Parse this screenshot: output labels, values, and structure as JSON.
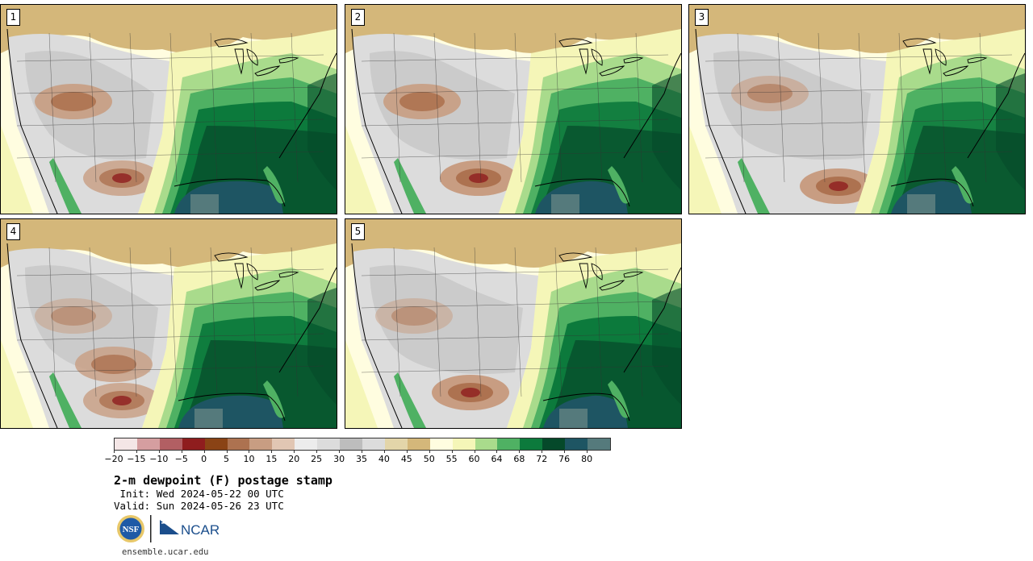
{
  "title": "2-m dewpoint (F) postage stamp",
  "init_label": " Init:",
  "init_value": "Wed 2024-05-22 00 UTC",
  "valid_label": "Valid:",
  "valid_value": "Sun 2024-05-26 23 UTC",
  "website": "ensemble.ucar.edu",
  "logos": {
    "nsf_text": "NSF",
    "ncar_text": "NCAR"
  },
  "panels": [
    {
      "number": "1"
    },
    {
      "number": "2"
    },
    {
      "number": "3"
    },
    {
      "number": "4"
    },
    {
      "number": "5"
    }
  ],
  "colorbar": {
    "unit": "F",
    "tick_labels": [
      "−20",
      "−15",
      "−10",
      "−5",
      "0",
      "5",
      "10",
      "15",
      "20",
      "25",
      "30",
      "35",
      "40",
      "45",
      "50",
      "55",
      "60",
      "64",
      "68",
      "72",
      "76",
      "80"
    ],
    "colors": [
      "#f4e6e6",
      "#d59ea0",
      "#b25f63",
      "#8f1d1e",
      "#8a4315",
      "#ad7250",
      "#c89d82",
      "#e1c6b3",
      "#ececec",
      "#dcdcdc",
      "#bdbdbd",
      "#dcdcdc",
      "#e3d5a9",
      "#d4b77a",
      "#fffde0",
      "#f5f6b8",
      "#a9db8c",
      "#4fb163",
      "#0c7a3c",
      "#05492a",
      "#1e5563",
      "#557a7c"
    ]
  },
  "map_colors": {
    "ocean_warm": "#1e5563",
    "ocean_deep": "#557a7c",
    "humid_dark": "#05492a",
    "humid": "#0c7a3c",
    "humid_mid": "#4fb163",
    "humid_light": "#a9db8c",
    "moist": "#f5f6b8",
    "moist_pale": "#fffde0",
    "dry_tan": "#d4b77a",
    "dry_pale_tan": "#e3d5a9",
    "dry_gray": "#dcdcdc",
    "dry_mid_gray": "#bdbdbd",
    "arid_brown": "#ad7250",
    "arid_light_brown": "#c89d82",
    "arid_dark": "#8f1d1e"
  }
}
